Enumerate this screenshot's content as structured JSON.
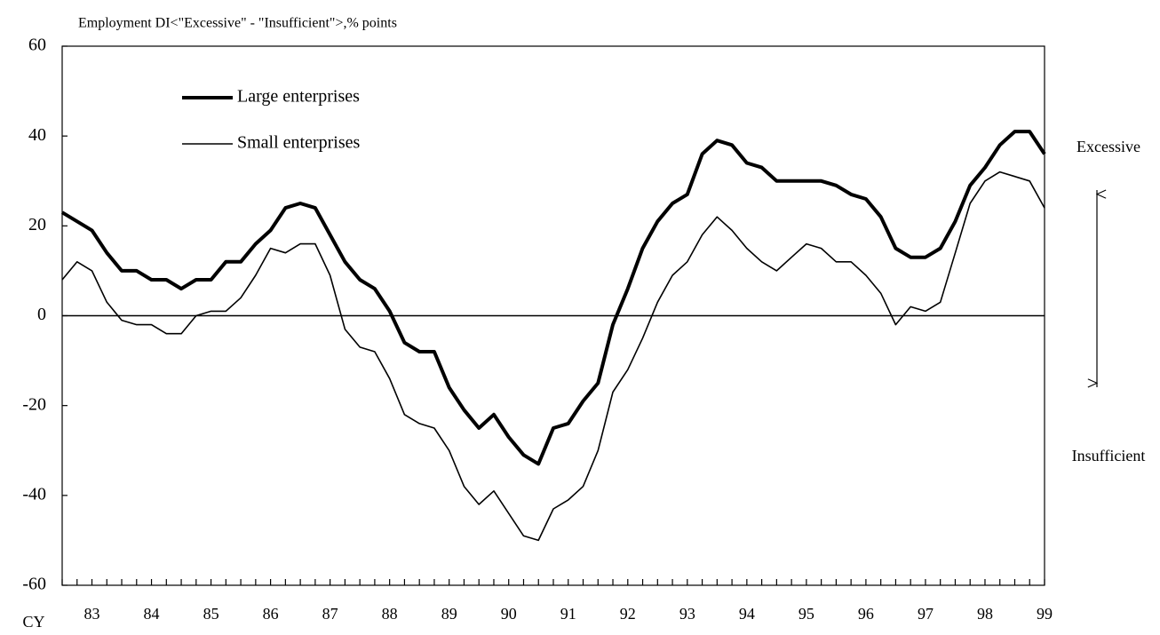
{
  "chart_data": {
    "type": "line",
    "title": "Employment DI<\"Excessive\" - \"Insufficient\">,% points",
    "x_label": "CY",
    "annotations": [
      "Excessive",
      "Insufficient"
    ],
    "categories": [
      null,
      null,
      "83",
      null,
      null,
      null,
      "84",
      null,
      null,
      null,
      "85",
      null,
      null,
      null,
      "86",
      null,
      null,
      null,
      "87",
      null,
      null,
      null,
      "88",
      null,
      null,
      null,
      "89",
      null,
      null,
      null,
      "90",
      null,
      null,
      null,
      "91",
      null,
      null,
      null,
      "92",
      null,
      null,
      null,
      "93",
      null,
      null,
      null,
      "94",
      null,
      null,
      null,
      "95",
      null,
      null,
      null,
      "96",
      null,
      null,
      null,
      "97",
      null,
      null,
      null,
      "98",
      null,
      null,
      null,
      "99"
    ],
    "series": [
      {
        "name": "Large enterprises",
        "color": "#000000",
        "linewidth": 4,
        "values": [
          23,
          21,
          19,
          14,
          10,
          10,
          8,
          8,
          6,
          8,
          8,
          12,
          12,
          16,
          19,
          24,
          25,
          24,
          18,
          12,
          8,
          6,
          1,
          -6,
          -8,
          -8,
          -16,
          -21,
          -25,
          -22,
          -27,
          -31,
          -33,
          -25,
          -24,
          -19,
          -15,
          -2,
          6,
          15,
          21,
          25,
          27,
          36,
          39,
          38,
          34,
          33,
          30,
          30,
          30,
          30,
          29,
          27,
          26,
          22,
          15,
          13,
          13,
          15,
          21,
          29,
          33,
          38,
          41,
          41,
          36
        ]
      },
      {
        "name": "Small enterprises",
        "color": "#000000",
        "linewidth": 1.6,
        "values": [
          8,
          12,
          10,
          3,
          -1,
          -2,
          -2,
          -4,
          -4,
          0,
          1,
          1,
          4,
          9,
          15,
          14,
          16,
          16,
          9,
          -3,
          -7,
          -8,
          -14,
          -22,
          -24,
          -25,
          -30,
          -38,
          -42,
          -39,
          -44,
          -49,
          -50,
          -43,
          -41,
          -38,
          -30,
          -17,
          -12,
          -5,
          3,
          9,
          12,
          18,
          22,
          19,
          15,
          12,
          10,
          13,
          16,
          15,
          12,
          12,
          9,
          5,
          -2,
          2,
          1,
          3,
          14,
          25,
          30,
          32,
          31,
          30,
          24
        ]
      }
    ],
    "ylim": [
      -60,
      60
    ],
    "yticks": [
      -60,
      -40,
      -20,
      0,
      20,
      40,
      60
    ],
    "grid": false,
    "legend": "upper left"
  }
}
